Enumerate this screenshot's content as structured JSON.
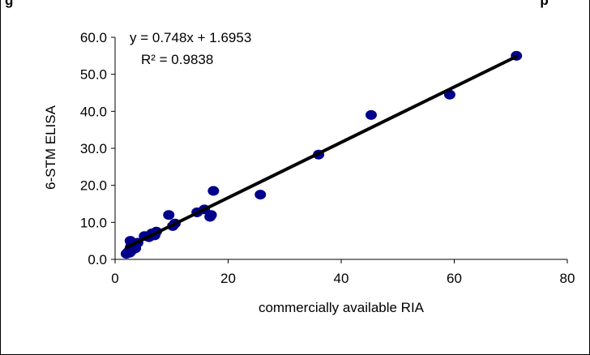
{
  "chart_data": {
    "type": "scatter",
    "title_fragment_left": "g",
    "title_fragment_right": "p",
    "xlabel": "commercially available RIA",
    "ylabel": "6-STM ELISA",
    "xlim": [
      0,
      80
    ],
    "ylim": [
      0,
      60
    ],
    "x_ticks": [
      "0",
      "20",
      "40",
      "60",
      "80"
    ],
    "y_ticks": [
      "0.0",
      "10.0",
      "20.0",
      "30.0",
      "40.0",
      "50.0",
      "60.0"
    ],
    "grid": false,
    "legend": "none",
    "marker_color": "#00008B",
    "trendline": {
      "slope": 0.748,
      "intercept": 1.6953,
      "x_range": [
        2,
        71
      ],
      "equation_label": "y = 0.748x + 1.6953",
      "r2_label": "R² = 0.9838"
    },
    "points": [
      {
        "x": 2.0,
        "y": 1.5
      },
      {
        "x": 2.3,
        "y": 2.0
      },
      {
        "x": 2.6,
        "y": 1.8
      },
      {
        "x": 2.8,
        "y": 3.5
      },
      {
        "x": 3.0,
        "y": 2.5
      },
      {
        "x": 2.7,
        "y": 5.0
      },
      {
        "x": 3.2,
        "y": 4.0
      },
      {
        "x": 3.6,
        "y": 3.0
      },
      {
        "x": 4.0,
        "y": 4.5
      },
      {
        "x": 5.2,
        "y": 6.3
      },
      {
        "x": 6.0,
        "y": 6.0
      },
      {
        "x": 6.5,
        "y": 7.0
      },
      {
        "x": 7.0,
        "y": 6.5
      },
      {
        "x": 7.3,
        "y": 7.5
      },
      {
        "x": 9.5,
        "y": 12.0
      },
      {
        "x": 10.2,
        "y": 9.0
      },
      {
        "x": 10.6,
        "y": 9.7
      },
      {
        "x": 14.5,
        "y": 12.7
      },
      {
        "x": 15.8,
        "y": 13.5
      },
      {
        "x": 16.8,
        "y": 11.5
      },
      {
        "x": 17.0,
        "y": 12.0
      },
      {
        "x": 17.4,
        "y": 18.5
      },
      {
        "x": 25.7,
        "y": 17.5
      },
      {
        "x": 36.0,
        "y": 28.3
      },
      {
        "x": 45.3,
        "y": 39.0
      },
      {
        "x": 59.2,
        "y": 44.5
      },
      {
        "x": 71.0,
        "y": 55.0
      }
    ]
  }
}
